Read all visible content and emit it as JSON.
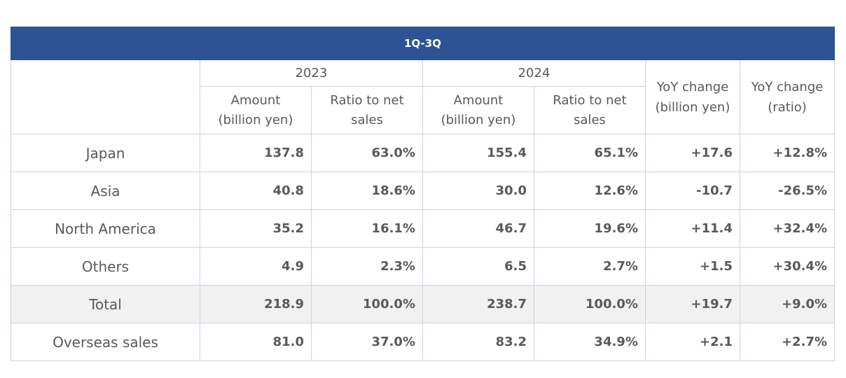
{
  "title": "1Q-3Q",
  "years": [
    "2023",
    "2024"
  ],
  "sub_headers": {
    "amount": [
      "Amount",
      "(billion yen)"
    ],
    "ratio": [
      "Ratio to net",
      "sales"
    ]
  },
  "yoy_headers": {
    "amount": [
      "YoY change",
      "(billion yen)"
    ],
    "ratio": [
      "YoY change",
      "(ratio)"
    ]
  },
  "rows": [
    {
      "label": "Japan",
      "a2023": "137.8",
      "r2023": "63.0%",
      "a2024": "155.4",
      "r2024": "65.1%",
      "yoy_amt": "+17.6",
      "yoy_ratio": "+12.8%"
    },
    {
      "label": "Asia",
      "a2023": "40.8",
      "r2023": "18.6%",
      "a2024": "30.0",
      "r2024": "12.6%",
      "yoy_amt": "-10.7",
      "yoy_ratio": "-26.5%"
    },
    {
      "label": "North America",
      "a2023": "35.2",
      "r2023": "16.1%",
      "a2024": "46.7",
      "r2024": "19.6%",
      "yoy_amt": "+11.4",
      "yoy_ratio": "+32.4%"
    },
    {
      "label": "Others",
      "a2023": "4.9",
      "r2023": "2.3%",
      "a2024": "6.5",
      "r2024": "2.7%",
      "yoy_amt": "+1.5",
      "yoy_ratio": "+30.4%"
    },
    {
      "label": "Total",
      "a2023": "218.9",
      "r2023": "100.0%",
      "a2024": "238.7",
      "r2024": "100.0%",
      "yoy_amt": "+19.7",
      "yoy_ratio": "+9.0%"
    },
    {
      "label": "Overseas sales",
      "a2023": "81.0",
      "r2023": "37.0%",
      "a2024": "83.2",
      "r2024": "34.9%",
      "yoy_amt": "+2.1",
      "yoy_ratio": "+2.7%"
    }
  ],
  "colors": {
    "header_bg": "#2e5395",
    "header_text": "#ffffff",
    "border": "#c9d3e6",
    "total_row_bg": "#f1f1f1",
    "text": "#595959"
  }
}
